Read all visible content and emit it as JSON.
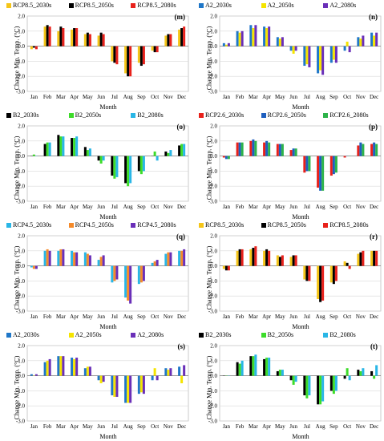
{
  "chart_data": [
    {
      "type": "bar",
      "panel": "(m)",
      "categories": [
        "Jan",
        "Feb",
        "Mar",
        "Apr",
        "May",
        "Jun",
        "Jul",
        "Aug",
        "Sep",
        "Oct",
        "Nov",
        "Dec"
      ],
      "ylabel": "Change Min. Temp. (°C)",
      "xlabel": "Month",
      "ylim": [
        -3.0,
        2.0
      ],
      "yticks": [
        "-3.0",
        "-2.0",
        "-1.0",
        "0.0",
        "1.0",
        "2.0"
      ],
      "series": [
        {
          "name": "RCP8.5_2030s",
          "color": "#f5c518",
          "values": [
            -0.2,
            1.3,
            1.0,
            1.1,
            0.8,
            0.7,
            -1.0,
            -1.8,
            -1.1,
            -0.3,
            0.7,
            1.1
          ]
        },
        {
          "name": "RCP8.5_2050s",
          "color": "#000000",
          "values": [
            -0.1,
            1.4,
            1.3,
            1.2,
            0.9,
            0.9,
            -1.1,
            -2.0,
            -1.3,
            -0.4,
            0.8,
            1.2
          ]
        },
        {
          "name": "RCP8.5_2080s",
          "color": "#e8211b",
          "values": [
            -0.2,
            1.3,
            1.2,
            1.2,
            0.8,
            0.8,
            -1.2,
            -2.0,
            -1.2,
            -0.4,
            0.8,
            1.3
          ]
        }
      ]
    },
    {
      "type": "bar",
      "panel": "(n)",
      "categories": [
        "Jan",
        "Feb",
        "Mar",
        "Apr",
        "May",
        "Jun",
        "Jul",
        "Aug",
        "Sep",
        "Oct",
        "Nov",
        "Dec"
      ],
      "ylabel": "Change Min. Temp. (°C)",
      "xlabel": "Month",
      "ylim": [
        -3.0,
        2.0
      ],
      "yticks": [
        "-3.0",
        "-2.0",
        "-1.0",
        "0.0",
        "1.0",
        "2.0"
      ],
      "series": [
        {
          "name": "A2_2030s",
          "color": "#1f77c8",
          "values": [
            0.2,
            1.0,
            1.4,
            1.3,
            0.6,
            -0.3,
            -1.3,
            -1.8,
            -1.1,
            -0.3,
            0.6,
            0.9
          ]
        },
        {
          "name": "A2_2050s",
          "color": "#f5e400",
          "values": [
            0.1,
            0.9,
            1.2,
            1.2,
            0.5,
            -0.5,
            -1.2,
            -1.6,
            -0.9,
            0.3,
            0.5,
            0.7
          ]
        },
        {
          "name": "A2_2080s",
          "color": "#6a2fb8",
          "values": [
            0.2,
            1.0,
            1.4,
            1.3,
            0.6,
            -0.3,
            -1.4,
            -1.9,
            -1.1,
            -0.4,
            0.7,
            0.9
          ]
        }
      ]
    },
    {
      "type": "bar",
      "panel": "(o)",
      "categories": [
        "Jan",
        "Feb",
        "Mar",
        "Apr",
        "May",
        "Jun",
        "Jul",
        "Aug",
        "Sep",
        "Oct",
        "Nov",
        "Dec"
      ],
      "ylabel": "Change Min. Temp. (°C)",
      "xlabel": "Month",
      "ylim": [
        -3.0,
        2.0
      ],
      "yticks": [
        "-3.0",
        "-2.0",
        "-1.0",
        "0.0",
        "1.0",
        "2.0"
      ],
      "series": [
        {
          "name": "B2_2030s",
          "color": "#000000",
          "values": [
            0.0,
            0.8,
            1.4,
            1.2,
            0.6,
            -0.3,
            -1.3,
            -1.8,
            -1.0,
            0.0,
            0.3,
            0.7
          ]
        },
        {
          "name": "B2_2050s",
          "color": "#3ddc2a",
          "values": [
            0.1,
            0.9,
            1.3,
            1.2,
            0.4,
            -0.5,
            -1.5,
            -2.0,
            -1.2,
            0.3,
            0.2,
            0.8
          ]
        },
        {
          "name": "B2_2080s",
          "color": "#29b6e6",
          "values": [
            0.0,
            0.9,
            1.3,
            1.3,
            0.5,
            -0.3,
            -1.4,
            -1.8,
            -1.0,
            -0.3,
            0.4,
            0.8
          ]
        }
      ]
    },
    {
      "type": "bar",
      "panel": "(p)",
      "categories": [
        "Jan",
        "Feb",
        "Mar",
        "Apr",
        "May",
        "Jun",
        "Jul",
        "Aug",
        "Sep",
        "Oct",
        "Nov",
        "Dec"
      ],
      "ylabel": "Change Min. Temp. (°C)",
      "xlabel": "Month",
      "ylim": [
        -3.0,
        2.0
      ],
      "yticks": [
        "-3.0",
        "-2.0",
        "-1.0",
        "0.0",
        "1.0",
        "2.0"
      ],
      "series": [
        {
          "name": "RCP2.6_2030s",
          "color": "#e8211b",
          "values": [
            -0.1,
            0.9,
            1.0,
            0.9,
            0.8,
            0.4,
            -1.1,
            -2.1,
            -1.3,
            -0.1,
            0.7,
            0.8
          ]
        },
        {
          "name": "RCP2.6_2050s",
          "color": "#1f5fbf",
          "values": [
            -0.2,
            0.9,
            1.1,
            1.0,
            0.8,
            0.5,
            -1.0,
            -2.3,
            -1.2,
            0.0,
            0.9,
            0.9
          ]
        },
        {
          "name": "RCP2.6_2080s",
          "color": "#2db34a",
          "values": [
            -0.2,
            0.9,
            1.0,
            0.9,
            0.8,
            0.5,
            -1.0,
            -2.3,
            -1.1,
            0.0,
            0.8,
            0.8
          ]
        }
      ]
    },
    {
      "type": "bar",
      "panel": "(q)",
      "categories": [
        "Jan",
        "Feb",
        "Mar",
        "Apr",
        "May",
        "Jun",
        "Jul",
        "Aug",
        "Sep",
        "Oct",
        "Nov",
        "Dec"
      ],
      "ylabel": "Change Min. Temp. (°C)",
      "xlabel": "Month",
      "ylim": [
        -3.0,
        2.0
      ],
      "yticks": [
        "-3.0",
        "-2.0",
        "-1.0",
        "0.0",
        "1.0",
        "2.0"
      ],
      "series": [
        {
          "name": "RCP4.5_2030s",
          "color": "#29b6e6",
          "values": [
            -0.1,
            1.0,
            1.0,
            1.0,
            0.9,
            0.4,
            -1.1,
            -2.1,
            -1.2,
            0.2,
            0.8,
            1.0
          ]
        },
        {
          "name": "RCP4.5_2050s",
          "color": "#f58a2a",
          "values": [
            -0.2,
            1.1,
            1.1,
            0.9,
            0.8,
            0.6,
            -1.0,
            -2.3,
            -1.1,
            0.3,
            0.9,
            1.0
          ]
        },
        {
          "name": "RCP4.5_2080s",
          "color": "#6a2fb8",
          "values": [
            -0.2,
            1.0,
            1.1,
            0.9,
            0.7,
            0.7,
            -0.9,
            -2.5,
            -1.0,
            0.4,
            0.9,
            1.1
          ]
        }
      ]
    },
    {
      "type": "bar",
      "panel": "(r)",
      "categories": [
        "Jan",
        "Feb",
        "Mar",
        "Apr",
        "May",
        "Jun",
        "Jul",
        "Aug",
        "Sep",
        "Oct",
        "Nov",
        "Dec"
      ],
      "ylabel": "Change Min. Temp. (°C)",
      "xlabel": "Month",
      "ylim": [
        -3.0,
        2.0
      ],
      "yticks": [
        "-3.0",
        "-2.0",
        "-1.0",
        "0.0",
        "1.0",
        "2.0"
      ],
      "series": [
        {
          "name": "RCP8.5_2030s",
          "color": "#f5c518",
          "values": [
            -0.2,
            1.0,
            1.1,
            1.0,
            0.7,
            0.6,
            -0.9,
            -2.2,
            -1.1,
            0.3,
            0.8,
            1.0
          ]
        },
        {
          "name": "RCP8.5_2050s",
          "color": "#000000",
          "values": [
            -0.3,
            1.1,
            1.2,
            1.1,
            0.6,
            0.7,
            -1.0,
            -2.4,
            -1.2,
            0.2,
            0.9,
            1.0
          ]
        },
        {
          "name": "RCP8.5_2080s",
          "color": "#e8211b",
          "values": [
            -0.3,
            1.1,
            1.3,
            1.0,
            0.7,
            0.7,
            -1.0,
            -2.3,
            -1.0,
            -0.2,
            1.0,
            1.0
          ]
        }
      ]
    },
    {
      "type": "bar",
      "panel": "(s)",
      "categories": [
        "Jan",
        "Feb",
        "Mar",
        "Apr",
        "May",
        "Jun",
        "Jul",
        "Aug",
        "Sep",
        "Oct",
        "Nov",
        "Dec"
      ],
      "ylabel": "Change Min. Temp. (°C)",
      "xlabel": "Month",
      "ylim": [
        -3.0,
        2.0
      ],
      "yticks": [
        "-3.0",
        "-2.0",
        "-1.0",
        "0.0",
        "1.0",
        "2.0"
      ],
      "series": [
        {
          "name": "A2_2030s",
          "color": "#1f77c8",
          "values": [
            0.1,
            0.9,
            1.3,
            1.2,
            0.5,
            -0.3,
            -1.3,
            -1.8,
            -1.2,
            -0.3,
            0.5,
            0.6
          ]
        },
        {
          "name": "A2_2050s",
          "color": "#f5e400",
          "values": [
            0.0,
            1.0,
            1.3,
            1.1,
            0.6,
            -0.5,
            -1.4,
            -1.8,
            -1.1,
            0.5,
            0.4,
            -0.5
          ]
        },
        {
          "name": "A2_2080s",
          "color": "#6a2fb8",
          "values": [
            0.1,
            1.1,
            1.3,
            1.2,
            0.6,
            -0.4,
            -1.4,
            -1.8,
            -1.2,
            -0.3,
            0.5,
            0.7
          ]
        }
      ]
    },
    {
      "type": "bar",
      "panel": "(t)",
      "categories": [
        "Jan",
        "Feb",
        "Mar",
        "Apr",
        "May",
        "Jun",
        "Jul",
        "Aug",
        "Sep",
        "Oct",
        "Nov",
        "Dec"
      ],
      "ylabel": "Change Min. Temp. (°C)",
      "xlabel": "Month",
      "ylim": [
        -3.0,
        2.0
      ],
      "yticks": [
        "-3.0",
        "-2.0",
        "-1.0",
        "0.0",
        "1.0",
        "2.0"
      ],
      "series": [
        {
          "name": "B2_2030s",
          "color": "#000000",
          "values": [
            0.0,
            0.9,
            1.3,
            1.1,
            0.3,
            -0.3,
            -1.3,
            -1.9,
            -1.0,
            -0.2,
            0.4,
            0.3
          ]
        },
        {
          "name": "B2_2050s",
          "color": "#3ddc2a",
          "values": [
            0.0,
            0.8,
            1.3,
            1.2,
            0.4,
            -0.6,
            -1.5,
            -1.9,
            -1.2,
            0.5,
            0.3,
            -0.2
          ]
        },
        {
          "name": "B2_2080s",
          "color": "#29b6e6",
          "values": [
            0.0,
            1.0,
            1.4,
            1.2,
            0.4,
            -0.4,
            -1.3,
            -1.7,
            -1.0,
            -0.3,
            0.5,
            0.7
          ]
        }
      ]
    }
  ]
}
